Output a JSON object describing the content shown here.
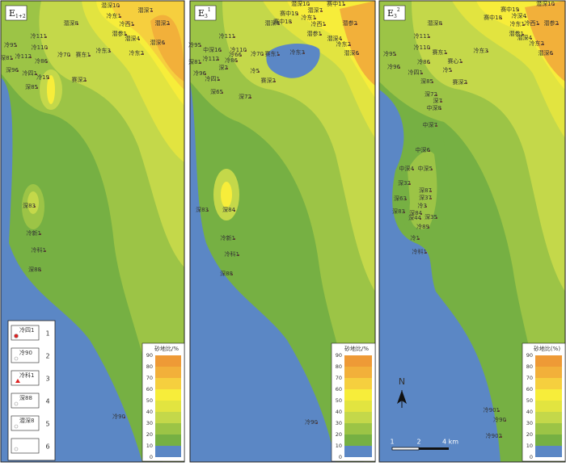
{
  "panels": [
    {
      "label": "E",
      "sub": "1+2",
      "scale_title": "砂地比/%",
      "wells": [
        "潜深10",
        "潜深7",
        "冷东1",
        "冷西1",
        "潜深8",
        "潜参1",
        "潜深2",
        "潜深4",
        "潜深6",
        "冷东2",
        "冷东3",
        "冷111",
        "冷95",
        "冷110",
        "深81",
        "冷112",
        "冷86",
        "冷70",
        "赛东1",
        "深96",
        "冷四1",
        "冷19",
        "深85",
        "赛深2",
        "深83",
        "冷新1",
        "冷科1",
        "深88",
        "冷90"
      ]
    },
    {
      "label": "E",
      "sub": "3",
      "sup": "1",
      "scale_title": "砂地比/%",
      "wells": [
        "潜深10",
        "赛中11",
        "潜深7",
        "赛中19",
        "冷东1",
        "赛中18",
        "冷西1",
        "潜深8",
        "潜参1",
        "潜参2",
        "潜深4",
        "冷东2",
        "潜深6",
        "冷111",
        "冷95",
        "中深16",
        "冷110",
        "深81",
        "冷112",
        "冷86",
        "冷66",
        "冷70",
        "赛东1",
        "冷东3",
        "冷96",
        "冷四1",
        "深2",
        "冷5",
        "赛深2",
        "深65",
        "深72",
        "深83",
        "深84",
        "冷新1",
        "冷科1",
        "深88",
        "冷90"
      ]
    },
    {
      "label": "E",
      "sub": "3",
      "sup": "2",
      "scale_title": "砂地比(%)",
      "wells": [
        "潜深10",
        "赛中19",
        "冷深4",
        "赛中18",
        "冷东1",
        "冷西1",
        "潜深8",
        "冷111",
        "潜参1",
        "潜深4",
        "潜参2",
        "冷东2",
        "潜深6",
        "冷95",
        "冷110",
        "赛东1",
        "冷东3",
        "赛心1",
        "冷96",
        "冷86",
        "冷四1",
        "冷5",
        "深85",
        "赛深2",
        "深72",
        "深7",
        "中深8",
        "中深7",
        "中深6",
        "中深4",
        "中深5",
        "深32",
        "深87",
        "深37",
        "深63",
        "冷3",
        "深83",
        "深84",
        "深44",
        "深35",
        "冷89",
        "冷1",
        "冷科1",
        "冷901",
        "冷90",
        "冷902"
      ]
    }
  ],
  "scale_ticks": [
    90,
    80,
    70,
    60,
    50,
    40,
    30,
    20,
    10,
    0
  ],
  "scale_colors": [
    "#ee9a36",
    "#f2b03a",
    "#f6cf3e",
    "#f7ed3a",
    "#e2e440",
    "#c4d84a",
    "#9cc446",
    "#76b043",
    "#5b87c5"
  ],
  "legend": [
    {
      "num": 1,
      "label": "冷四1"
    },
    {
      "num": 2,
      "label": "冷90"
    },
    {
      "num": 3,
      "label": "冷科1"
    },
    {
      "num": 4,
      "label": "深88"
    },
    {
      "num": 5,
      "label": "潜深8"
    },
    {
      "num": 6
    }
  ],
  "north": "N",
  "scale_bar": [
    "1",
    "2",
    "4 km"
  ]
}
